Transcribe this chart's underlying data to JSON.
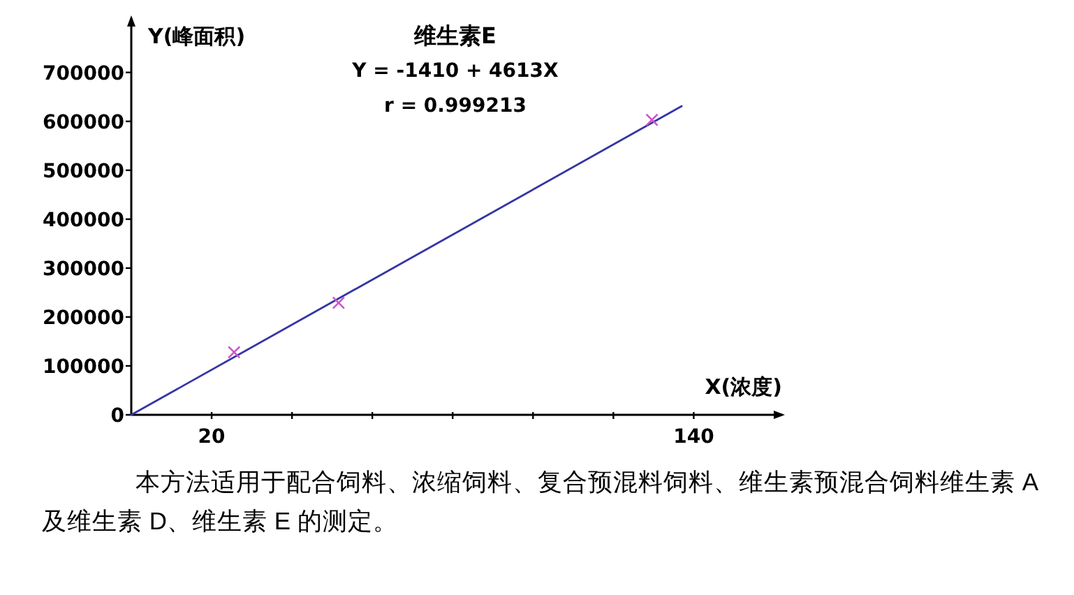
{
  "chart_data": {
    "type": "scatter",
    "title": "维生素E",
    "xlabel": "X(浓度)",
    "ylabel": "Y(峰面积)",
    "annotations": [
      "Y = -1410 + 4613X",
      "r = 0.999213",
      "本方法适用于配合饲料、浓缩饲料、复合预混料饲料、维生素预混合饲料维生素 A 及维生素 D、维生素 E 的测定。"
    ],
    "xlim": [
      0,
      162
    ],
    "ylim": [
      0,
      811000
    ],
    "xticks": [
      20,
      {
        "value": 40,
        "label": null
      },
      {
        "value": 60,
        "label": null
      },
      {
        "value": 80,
        "label": null
      },
      {
        "value": 100,
        "label": null
      },
      {
        "value": 120,
        "label": null
      },
      140
    ],
    "yticks": [
      0,
      100000,
      200000,
      300000,
      400000,
      500000,
      600000,
      700000
    ],
    "series": [
      {
        "type": "line",
        "color": "#3535a5",
        "x": [
          0,
          137
        ],
        "values": [
          0,
          631000
        ]
      },
      {
        "marker": "cross",
        "color": "#cc55cc",
        "x": [
          25.6,
          51.6,
          129.6
        ],
        "values": [
          128000,
          229000,
          603000
        ]
      }
    ]
  }
}
